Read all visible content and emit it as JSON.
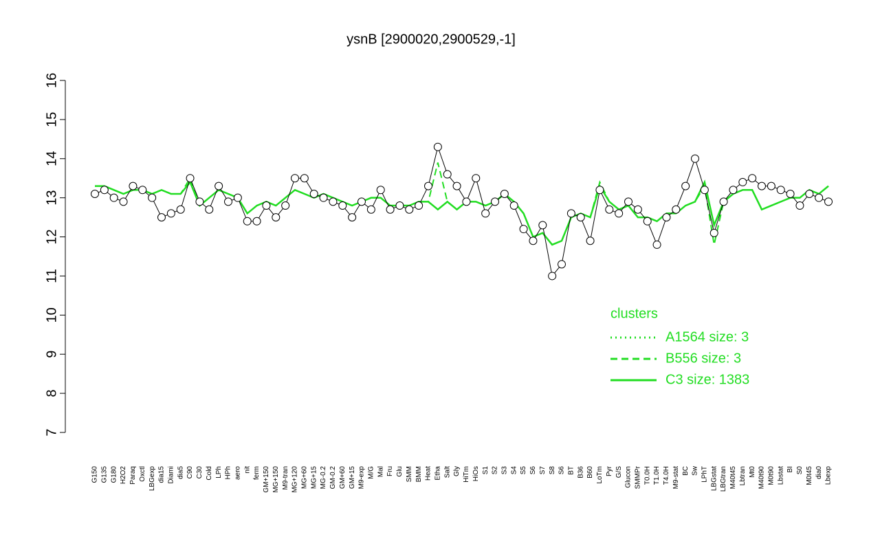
{
  "chart_data": {
    "type": "line",
    "title": "ysnB [2900020,2900529,-1]",
    "categories": [
      "G150",
      "G135",
      "G180",
      "H2O2",
      "Paraq",
      "Oxctl",
      "LBGexp",
      "dia15",
      "Diami",
      "dia5",
      "C90",
      "C30",
      "Cold",
      "LPh",
      "HPh",
      "aero",
      "nit",
      "ferm",
      "GM+150",
      "MG+150",
      "M9-tran",
      "MG+120",
      "MG+60",
      "MG+15",
      "MG-0.2",
      "GM-0.2",
      "GM+60",
      "GM+15",
      "M9-exp",
      "M/G",
      "Mal",
      "Fru",
      "Glu",
      "SMM",
      "BMM",
      "Heat",
      "Etha",
      "Salt",
      "Gly",
      "HiTm",
      "HiOs",
      "S1",
      "S2",
      "S3",
      "S4",
      "S5",
      "S6",
      "S7",
      "S8",
      "S6",
      "BT",
      "B36",
      "B60",
      "LoTm",
      "Pyr",
      "G/S",
      "Glucon",
      "SMMPr",
      "T0.0H",
      "T1.0H",
      "T4.0H",
      "M9-stat",
      "BC",
      "Sw",
      "LPhT",
      "LBGstat",
      "LBGtran",
      "M40t45",
      "Lbtran",
      "Mt0",
      "M40t90",
      "M0t90",
      "Lbstat",
      "BI",
      "S0",
      "M0t45",
      "dia0",
      "Lbexp"
    ],
    "values": [
      13.1,
      13.2,
      13.0,
      12.9,
      13.3,
      13.2,
      13.0,
      12.5,
      12.6,
      12.7,
      13.5,
      12.9,
      12.7,
      13.3,
      12.9,
      13.0,
      12.4,
      12.4,
      12.8,
      12.5,
      12.8,
      13.5,
      13.5,
      13.1,
      13.0,
      12.9,
      12.8,
      12.5,
      12.9,
      12.7,
      13.2,
      12.7,
      12.8,
      12.7,
      12.8,
      13.3,
      14.3,
      13.6,
      13.3,
      12.9,
      13.5,
      12.6,
      12.9,
      13.1,
      12.8,
      12.2,
      11.9,
      12.3,
      11.0,
      11.3,
      12.6,
      12.5,
      11.9,
      13.2,
      12.7,
      12.6,
      12.9,
      12.7,
      12.4,
      11.8,
      12.5,
      12.7,
      13.3,
      14.0,
      13.2,
      12.1,
      12.9,
      13.2,
      13.4,
      13.5,
      13.3,
      13.3,
      13.2,
      13.1,
      12.8,
      13.1,
      13.0,
      12.9
    ],
    "series": [
      {
        "name": "A1564 size: 3",
        "color": "#22dd22",
        "style": "dotted",
        "values": [
          13.3,
          13.3,
          13.2,
          13.1,
          13.2,
          13.2,
          13.1,
          13.2,
          13.1,
          13.1,
          13.4,
          12.8,
          13.0,
          13.2,
          13.1,
          13.0,
          12.6,
          12.8,
          12.9,
          12.8,
          13.0,
          13.2,
          13.1,
          13.0,
          13.1,
          13.0,
          12.9,
          12.8,
          12.9,
          13.0,
          13.0,
          12.8,
          12.8,
          12.8,
          12.9,
          12.9,
          12.7,
          12.9,
          12.7,
          12.9,
          12.9,
          12.8,
          12.9,
          13.1,
          12.9,
          12.6,
          12.0,
          12.1,
          11.8,
          11.9,
          12.5,
          12.6,
          12.5,
          13.3,
          12.9,
          12.7,
          12.8,
          12.5,
          12.5,
          12.4,
          12.6,
          12.6,
          12.8,
          12.9,
          13.4,
          12.3,
          12.9,
          13.1,
          13.2,
          13.2,
          12.7,
          12.8,
          12.9,
          13.0,
          13.0,
          13.2,
          13.1,
          13.3
        ]
      },
      {
        "name": "B556 size: 3",
        "color": "#22dd22",
        "style": "dashed",
        "values": [
          13.3,
          13.3,
          13.2,
          13.1,
          13.2,
          13.2,
          13.1,
          13.2,
          13.1,
          13.1,
          13.5,
          12.8,
          13.0,
          13.2,
          13.1,
          13.0,
          12.6,
          12.8,
          12.9,
          12.8,
          13.0,
          13.2,
          13.1,
          13.0,
          13.1,
          13.0,
          12.9,
          12.8,
          12.9,
          13.0,
          13.0,
          12.8,
          12.8,
          12.8,
          12.9,
          12.9,
          13.9,
          12.9,
          12.7,
          12.9,
          12.9,
          12.8,
          12.9,
          13.1,
          12.9,
          12.6,
          12.0,
          12.1,
          11.8,
          11.9,
          12.5,
          12.6,
          12.5,
          13.4,
          12.9,
          12.7,
          12.8,
          12.5,
          12.5,
          12.4,
          12.6,
          12.6,
          12.8,
          12.9,
          13.3,
          11.8,
          12.9,
          13.1,
          13.2,
          13.2,
          12.7,
          12.8,
          12.9,
          13.0,
          13.0,
          13.2,
          13.1,
          13.3
        ]
      },
      {
        "name": "C3 size: 1383",
        "color": "#22dd22",
        "style": "solid",
        "values": [
          13.3,
          13.3,
          13.2,
          13.1,
          13.2,
          13.2,
          13.1,
          13.2,
          13.1,
          13.1,
          13.4,
          12.8,
          13.0,
          13.2,
          13.1,
          13.0,
          12.6,
          12.8,
          12.9,
          12.8,
          13.0,
          13.2,
          13.1,
          13.0,
          13.1,
          13.0,
          12.9,
          12.8,
          12.9,
          13.0,
          13.0,
          12.8,
          12.8,
          12.8,
          12.9,
          12.9,
          12.7,
          12.9,
          12.7,
          12.9,
          12.9,
          12.8,
          12.9,
          13.1,
          12.9,
          12.6,
          12.0,
          12.1,
          11.8,
          11.9,
          12.5,
          12.6,
          12.5,
          13.3,
          12.9,
          12.7,
          12.8,
          12.5,
          12.5,
          12.4,
          12.6,
          12.6,
          12.8,
          12.9,
          13.4,
          12.3,
          12.9,
          13.1,
          13.2,
          13.2,
          12.7,
          12.8,
          12.9,
          13.0,
          13.0,
          13.2,
          13.1,
          13.3
        ]
      }
    ],
    "legend_title": "clusters",
    "ylim": [
      7,
      16
    ],
    "yticks": [
      7,
      8,
      9,
      10,
      11,
      12,
      13,
      14,
      15,
      16
    ]
  }
}
